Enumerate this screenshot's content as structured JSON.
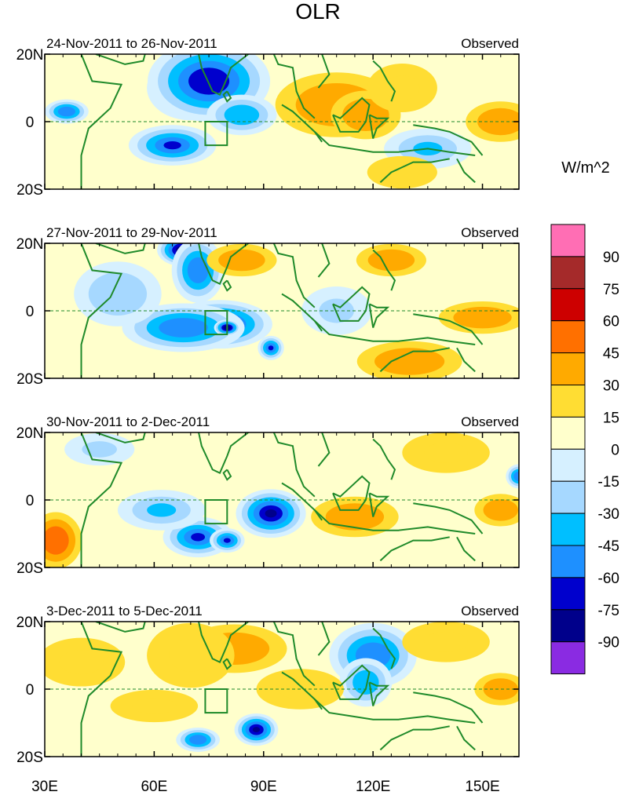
{
  "chart_data": {
    "type": "heatmap",
    "title": "OLR",
    "units": "W/m^2",
    "x_ticks": [
      "30E",
      "60E",
      "90E",
      "120E",
      "150E"
    ],
    "x_tick_values": [
      30,
      60,
      90,
      120,
      150
    ],
    "xlim": [
      30,
      160
    ],
    "y_ticks": [
      "20N",
      "0",
      "20S"
    ],
    "y_tick_values": [
      20,
      0,
      -20
    ],
    "ylim": [
      -20,
      20
    ],
    "colorbar": {
      "labels": [
        "90",
        "75",
        "60",
        "45",
        "30",
        "15",
        "0",
        "-15",
        "-30",
        "-45",
        "-60",
        "-75",
        "-90"
      ],
      "colors": [
        "#ff6eb4",
        "#a52a2a",
        "#cd0000",
        "#ff7000",
        "#ffaa00",
        "#ffdd33",
        "#ffffcc",
        "#d6f0ff",
        "#a6d8ff",
        "#00bfff",
        "#1e90ff",
        "#0000cd",
        "#00008b",
        "#8a2be2"
      ]
    },
    "reference_box": {
      "lon": [
        74,
        80
      ],
      "lat": [
        -7,
        0
      ]
    },
    "panels": [
      {
        "left": "24-Nov-2011 to 26-Nov-2011",
        "right": "Observed",
        "anomalies": [
          {
            "lon": 70,
            "lat": 10,
            "value": -90,
            "rx": 10,
            "ry": 8
          },
          {
            "lon": 75,
            "lat": 12,
            "value": -75,
            "rx": 14,
            "ry": 10
          },
          {
            "lon": 65,
            "lat": -7,
            "value": -70,
            "rx": 10,
            "ry": 5
          },
          {
            "lon": 84,
            "lat": 2,
            "value": -45,
            "rx": 8,
            "ry": 5
          },
          {
            "lon": 36,
            "lat": 3,
            "value": -60,
            "rx": 5,
            "ry": 3
          },
          {
            "lon": 110,
            "lat": 5,
            "value": 35,
            "rx": 14,
            "ry": 8
          },
          {
            "lon": 118,
            "lat": 2,
            "value": 40,
            "rx": 8,
            "ry": 6
          },
          {
            "lon": 128,
            "lat": 10,
            "value": 25,
            "rx": 8,
            "ry": 6
          },
          {
            "lon": 155,
            "lat": 0,
            "value": 40,
            "rx": 8,
            "ry": 5
          },
          {
            "lon": 135,
            "lat": -8,
            "value": -35,
            "rx": 10,
            "ry": 5
          },
          {
            "lon": 128,
            "lat": -15,
            "value": 25,
            "rx": 8,
            "ry": 4
          }
        ]
      },
      {
        "left": "27-Nov-2011 to 29-Nov-2011",
        "right": "Observed",
        "anomalies": [
          {
            "lon": 68,
            "lat": 18,
            "value": -90,
            "rx": 6,
            "ry": 4
          },
          {
            "lon": 72,
            "lat": 12,
            "value": -60,
            "rx": 6,
            "ry": 8
          },
          {
            "lon": 78,
            "lat": -4,
            "value": -80,
            "rx": 12,
            "ry": 6
          },
          {
            "lon": 68,
            "lat": -5,
            "value": -60,
            "rx": 14,
            "ry": 6
          },
          {
            "lon": 80,
            "lat": -5,
            "value": -90,
            "rx": 3,
            "ry": 2
          },
          {
            "lon": 92,
            "lat": -11,
            "value": -70,
            "rx": 3,
            "ry": 3
          },
          {
            "lon": 50,
            "lat": 5,
            "value": -30,
            "rx": 10,
            "ry": 8
          },
          {
            "lon": 84,
            "lat": 15,
            "value": 30,
            "rx": 8,
            "ry": 4
          },
          {
            "lon": 130,
            "lat": -15,
            "value": 40,
            "rx": 12,
            "ry": 5
          },
          {
            "lon": 150,
            "lat": -2,
            "value": 30,
            "rx": 10,
            "ry": 4
          },
          {
            "lon": 125,
            "lat": 15,
            "value": 30,
            "rx": 8,
            "ry": 4
          },
          {
            "lon": 110,
            "lat": 0,
            "value": -25,
            "rx": 8,
            "ry": 6
          }
        ]
      },
      {
        "left": "30-Nov-2011 to 2-Dec-2011",
        "right": "Observed",
        "anomalies": [
          {
            "lon": 92,
            "lat": -4,
            "value": -85,
            "rx": 8,
            "ry": 6
          },
          {
            "lon": 72,
            "lat": -11,
            "value": -70,
            "rx": 8,
            "ry": 5
          },
          {
            "lon": 80,
            "lat": -12,
            "value": -70,
            "rx": 4,
            "ry": 3
          },
          {
            "lon": 62,
            "lat": -3,
            "value": -35,
            "rx": 10,
            "ry": 5
          },
          {
            "lon": 33,
            "lat": -12,
            "value": 45,
            "rx": 6,
            "ry": 7
          },
          {
            "lon": 115,
            "lat": -5,
            "value": 30,
            "rx": 10,
            "ry": 5
          },
          {
            "lon": 140,
            "lat": 14,
            "value": 25,
            "rx": 10,
            "ry": 5
          },
          {
            "lon": 155,
            "lat": -3,
            "value": 35,
            "rx": 6,
            "ry": 4
          },
          {
            "lon": 160,
            "lat": 7,
            "value": -60,
            "rx": 3,
            "ry": 3
          },
          {
            "lon": 45,
            "lat": 15,
            "value": -20,
            "rx": 8,
            "ry": 4
          }
        ]
      },
      {
        "left": "3-Dec-2011 to 5-Dec-2011",
        "right": "Observed",
        "anomalies": [
          {
            "lon": 82,
            "lat": 12,
            "value": 40,
            "rx": 12,
            "ry": 6
          },
          {
            "lon": 70,
            "lat": 10,
            "value": 25,
            "rx": 10,
            "ry": 8
          },
          {
            "lon": 60,
            "lat": -5,
            "value": 25,
            "rx": 10,
            "ry": 4
          },
          {
            "lon": 88,
            "lat": -12,
            "value": -80,
            "rx": 5,
            "ry": 4
          },
          {
            "lon": 72,
            "lat": -15,
            "value": -60,
            "rx": 5,
            "ry": 3
          },
          {
            "lon": 120,
            "lat": 10,
            "value": -60,
            "rx": 10,
            "ry": 8
          },
          {
            "lon": 118,
            "lat": 2,
            "value": -45,
            "rx": 6,
            "ry": 6
          },
          {
            "lon": 140,
            "lat": 14,
            "value": 25,
            "rx": 10,
            "ry": 5
          },
          {
            "lon": 155,
            "lat": 0,
            "value": 35,
            "rx": 6,
            "ry": 4
          },
          {
            "lon": 40,
            "lat": 8,
            "value": 15,
            "rx": 10,
            "ry": 6
          },
          {
            "lon": 100,
            "lat": 0,
            "value": 20,
            "rx": 10,
            "ry": 5
          }
        ]
      }
    ]
  }
}
